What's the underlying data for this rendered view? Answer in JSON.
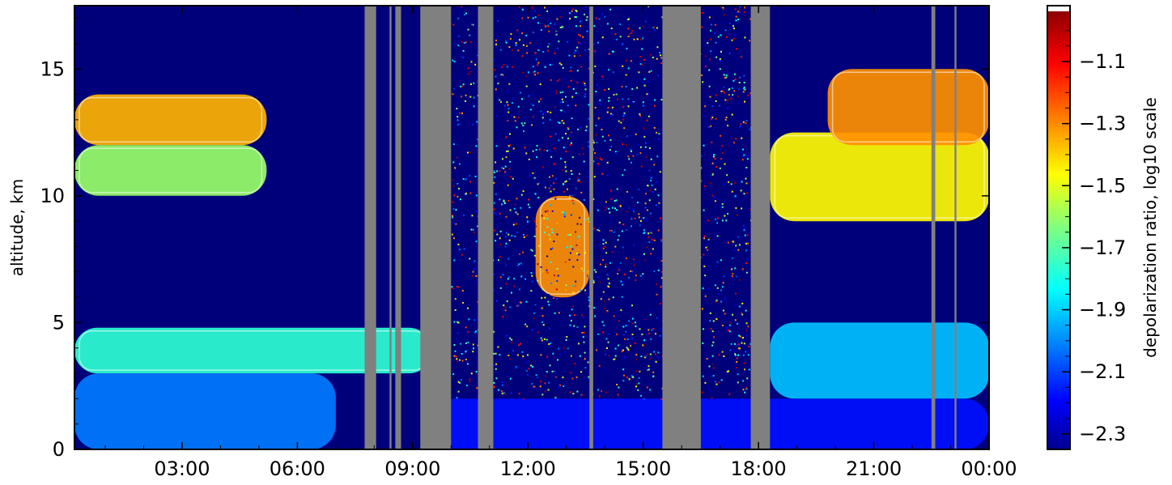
{
  "chart_data": {
    "type": "heatmap",
    "title": "",
    "xlabel": "",
    "ylabel": "altitude, km",
    "x_tick_labels": [
      "03:00",
      "06:00",
      "09:00",
      "12:00",
      "15:00",
      "18:00",
      "21:00",
      "00:00"
    ],
    "x_ticks_hours": [
      3,
      6,
      9,
      12,
      15,
      18,
      21,
      24
    ],
    "xlim_hours": [
      0.2,
      24
    ],
    "y_ticks": [
      0,
      5,
      10,
      15
    ],
    "ylim_km": [
      0,
      17.5
    ],
    "colorbar": {
      "label": "depolarization ratio, log10 scale",
      "ticks": [
        -1.1,
        -1.3,
        -1.5,
        -1.7,
        -1.9,
        -2.1,
        -2.3
      ],
      "tick_labels": [
        "−1.1",
        "−1.3",
        "−1.5",
        "−1.7",
        "−1.9",
        "−2.1",
        "−2.3"
      ],
      "range": [
        -2.35,
        -0.92
      ],
      "colormap": "jet"
    },
    "grid": false,
    "missing_data_color": "#808080",
    "background_color": "#00007a",
    "contour_color": "#ffffff",
    "gap_intervals_hours": [
      [
        7.75,
        8.05
      ],
      [
        8.4,
        8.45
      ],
      [
        8.55,
        8.7
      ],
      [
        9.2,
        10.0
      ],
      [
        10.7,
        11.1
      ],
      [
        13.6,
        13.7
      ],
      [
        15.5,
        16.5
      ],
      [
        17.8,
        18.3
      ],
      [
        22.5,
        22.6
      ],
      [
        23.1,
        23.15
      ]
    ],
    "regions": [
      {
        "x": [
          0.2,
          5.2
        ],
        "y": [
          12.0,
          14.0
        ],
        "value": -1.35
      },
      {
        "x": [
          0.2,
          5.2
        ],
        "y": [
          10.0,
          12.0
        ],
        "value": -1.6
      },
      {
        "x": [
          0.2,
          9.5
        ],
        "y": [
          3.0,
          4.8
        ],
        "value": -1.75
      },
      {
        "x": [
          0.2,
          7.0
        ],
        "y": [
          0.0,
          3.0
        ],
        "value": -2.0
      },
      {
        "x": [
          9.5,
          24.0
        ],
        "y": [
          0.0,
          2.0
        ],
        "value": -2.15
      },
      {
        "x": [
          12.2,
          13.6
        ],
        "y": [
          6.0,
          10.0
        ],
        "value": -1.3
      },
      {
        "x": [
          18.3,
          24.0
        ],
        "y": [
          9.0,
          12.5
        ],
        "value": -1.45
      },
      {
        "x": [
          19.8,
          24.0
        ],
        "y": [
          12.0,
          15.0
        ],
        "value": -1.3
      },
      {
        "x": [
          18.3,
          24.0
        ],
        "y": [
          2.0,
          5.0
        ],
        "value": -1.9
      },
      {
        "x": [
          10.0,
          18.0
        ],
        "y": [
          2.0,
          17.5
        ],
        "value": "noise"
      }
    ]
  }
}
